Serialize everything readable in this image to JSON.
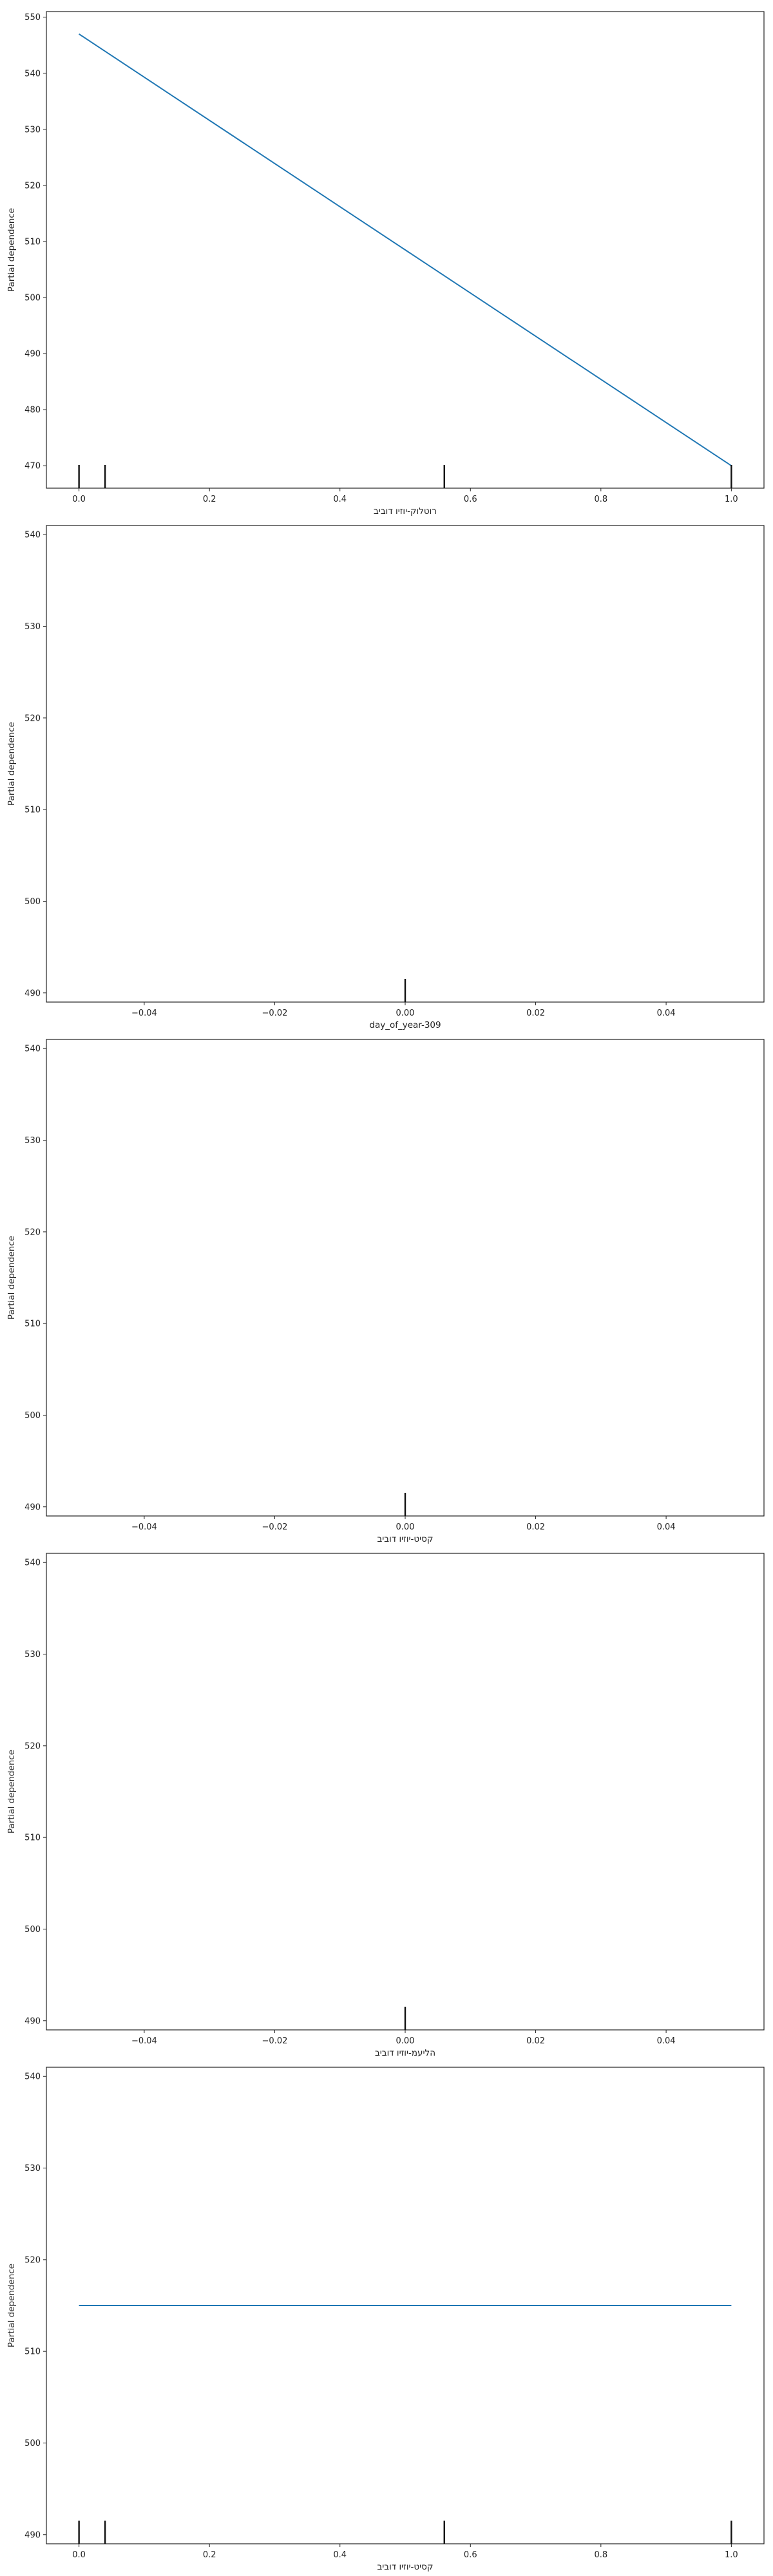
{
  "colors": {
    "line": "#1f77b4",
    "rug": "#111111",
    "axes": "#222222"
  },
  "chart_data": [
    {
      "type": "line",
      "xlabel": "רוטלוק-יוזיו דוביב",
      "ylabel": "Partial dependence",
      "xlim": [
        -0.05,
        1.05
      ],
      "ylim": [
        466,
        551
      ],
      "xticks": [
        0.0,
        0.2,
        0.4,
        0.6,
        0.8,
        1.0
      ],
      "xtick_labels": [
        "0.0",
        "0.2",
        "0.4",
        "0.6",
        "0.8",
        "1.0"
      ],
      "yticks": [
        470,
        480,
        490,
        500,
        510,
        520,
        530,
        540,
        550
      ],
      "ytick_labels": [
        "470",
        "480",
        "490",
        "500",
        "510",
        "520",
        "530",
        "540",
        "550"
      ],
      "x": [
        0.0,
        1.0
      ],
      "y": [
        547,
        470
      ],
      "rug": [
        0.0,
        0.04,
        0.56,
        1.0
      ]
    },
    {
      "type": "line",
      "xlabel": "day_of_year-309",
      "ylabel": "Partial dependence",
      "xlim": [
        -0.055,
        0.055
      ],
      "ylim": [
        489,
        541
      ],
      "xticks": [
        -0.04,
        -0.02,
        0.0,
        0.02,
        0.04
      ],
      "xtick_labels": [
        "−0.04",
        "−0.02",
        "0.00",
        "0.02",
        "0.04"
      ],
      "yticks": [
        490,
        500,
        510,
        520,
        530,
        540
      ],
      "ytick_labels": [
        "490",
        "500",
        "510",
        "520",
        "530",
        "540"
      ],
      "x": [],
      "y": [],
      "rug": [
        0.0
      ]
    },
    {
      "type": "line",
      "xlabel": "קסיט-יוזיו דוביב",
      "ylabel": "Partial dependence",
      "xlim": [
        -0.055,
        0.055
      ],
      "ylim": [
        489,
        541
      ],
      "xticks": [
        -0.04,
        -0.02,
        0.0,
        0.02,
        0.04
      ],
      "xtick_labels": [
        "−0.04",
        "−0.02",
        "0.00",
        "0.02",
        "0.04"
      ],
      "yticks": [
        490,
        500,
        510,
        520,
        530,
        540
      ],
      "ytick_labels": [
        "490",
        "500",
        "510",
        "520",
        "530",
        "540"
      ],
      "x": [],
      "y": [],
      "rug": [
        0.0
      ]
    },
    {
      "type": "line",
      "xlabel": "הליעמ-יוזיו דוביב",
      "ylabel": "Partial dependence",
      "xlim": [
        -0.055,
        0.055
      ],
      "ylim": [
        489,
        541
      ],
      "xticks": [
        -0.04,
        -0.02,
        0.0,
        0.02,
        0.04
      ],
      "xtick_labels": [
        "−0.04",
        "−0.02",
        "0.00",
        "0.02",
        "0.04"
      ],
      "yticks": [
        490,
        500,
        510,
        520,
        530,
        540
      ],
      "ytick_labels": [
        "490",
        "500",
        "510",
        "520",
        "530",
        "540"
      ],
      "x": [],
      "y": [],
      "rug": [
        0.0
      ]
    },
    {
      "type": "line",
      "xlabel": "קסיט-יוזיו דוביב",
      "ylabel": "Partial dependence",
      "xlim": [
        -0.05,
        1.05
      ],
      "ylim": [
        489,
        541
      ],
      "xticks": [
        0.0,
        0.2,
        0.4,
        0.6,
        0.8,
        1.0
      ],
      "xtick_labels": [
        "0.0",
        "0.2",
        "0.4",
        "0.6",
        "0.8",
        "1.0"
      ],
      "yticks": [
        490,
        500,
        510,
        520,
        530,
        540
      ],
      "ytick_labels": [
        "490",
        "500",
        "510",
        "520",
        "530",
        "540"
      ],
      "x": [
        0.0,
        1.0
      ],
      "y": [
        515,
        515
      ],
      "rug": [
        0.0,
        0.04,
        0.56,
        1.0
      ]
    }
  ]
}
